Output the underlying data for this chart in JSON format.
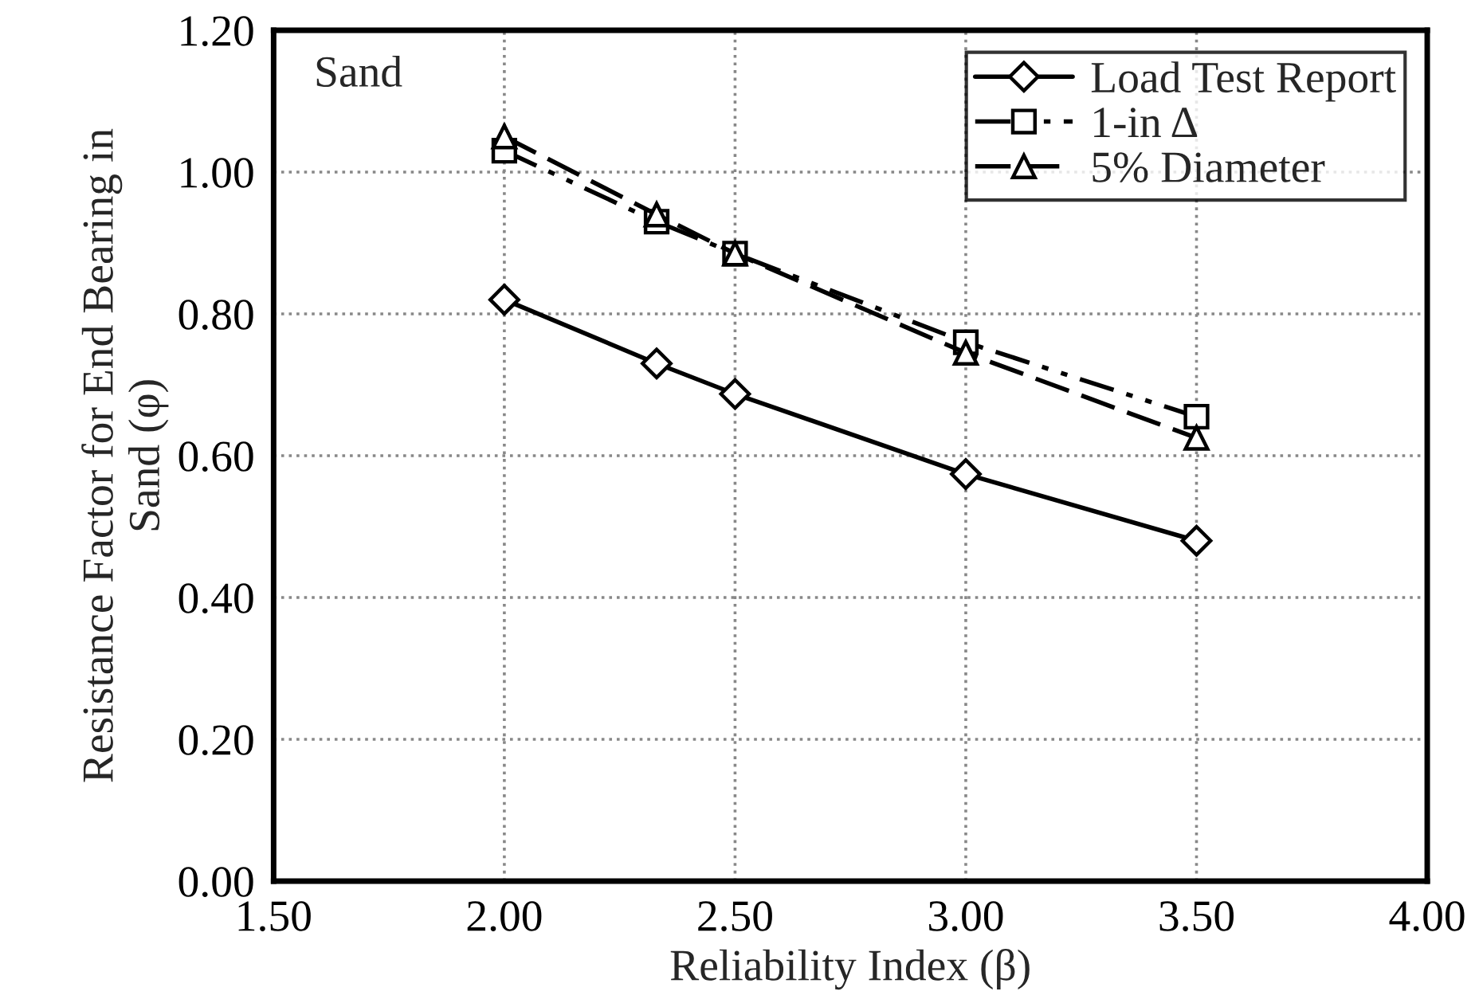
{
  "chart_data": {
    "type": "line",
    "xlabel": "Reliability Index (β)",
    "ylabel": "Resistance Factor for End Bearing in\nSand (φ)",
    "x": [
      2.0,
      2.33,
      2.5,
      3.0,
      3.5
    ],
    "series": [
      {
        "name": "Load Test Report",
        "color": "#000000",
        "values": [
          0.82,
          0.73,
          0.687,
          0.574,
          0.48
        ],
        "marker": "diamond",
        "line_style": "solid"
      },
      {
        "name": "1-in Δ",
        "color": "#000000",
        "values": [
          1.03,
          0.93,
          0.885,
          0.76,
          0.655
        ],
        "marker": "square",
        "line_style": "dashdot"
      },
      {
        "name": "5% Diameter",
        "color": "#000000",
        "values": [
          1.05,
          0.94,
          0.885,
          0.745,
          0.625
        ],
        "marker": "triangle",
        "line_style": "dashed"
      }
    ],
    "xlim": [
      1.5,
      4.0
    ],
    "xticks": [
      {
        "value": 1.5,
        "label": "1.50"
      },
      {
        "value": 2.0,
        "label": "2.00"
      },
      {
        "value": 2.5,
        "label": "2.50"
      },
      {
        "value": 3.0,
        "label": "3.00"
      },
      {
        "value": 3.5,
        "label": "3.50"
      },
      {
        "value": 4.0,
        "label": "4.00"
      }
    ],
    "ylim": [
      0.0,
      1.2
    ],
    "yticks": [
      {
        "value": 0.0,
        "label": "0.00"
      },
      {
        "value": 0.2,
        "label": "0.20"
      },
      {
        "value": 0.4,
        "label": "0.40"
      },
      {
        "value": 0.6,
        "label": "0.60"
      },
      {
        "value": 0.8,
        "label": "0.80"
      },
      {
        "value": 1.0,
        "label": "1.00"
      },
      {
        "value": 1.2,
        "label": "1.20"
      }
    ],
    "annotations": [
      "Sand"
    ],
    "grid": true,
    "legend": "top right"
  }
}
